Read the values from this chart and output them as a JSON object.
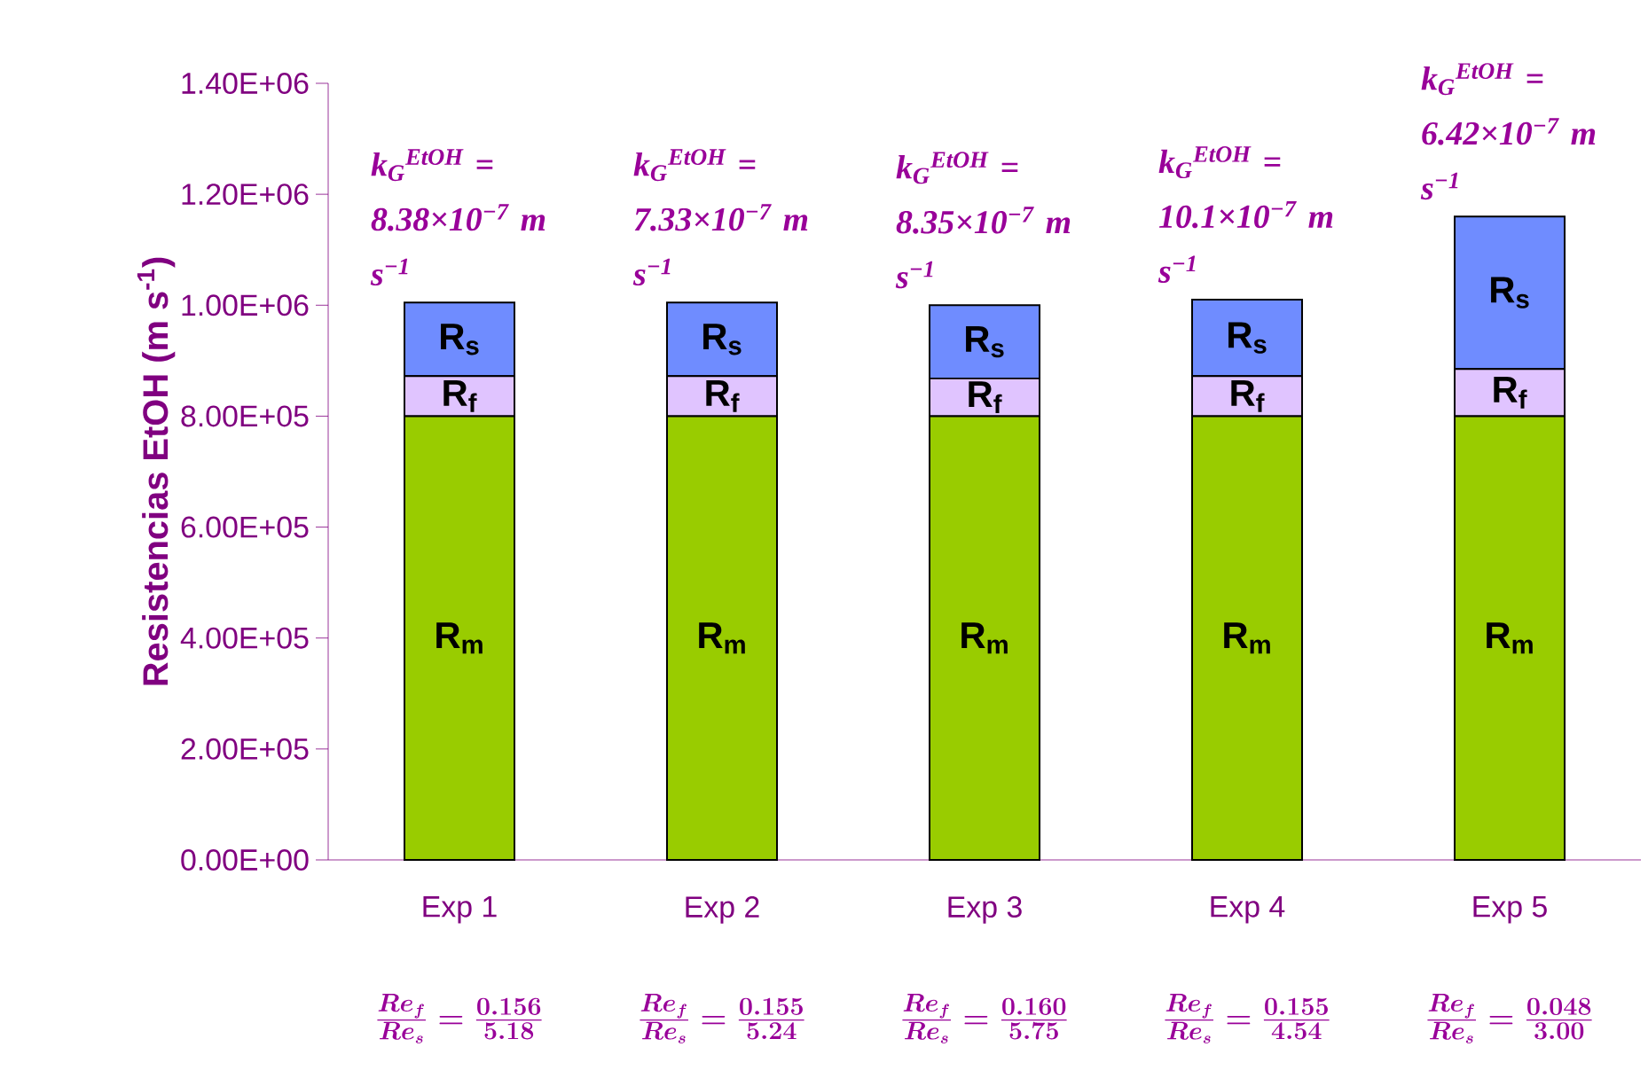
{
  "chart_data": {
    "type": "bar",
    "stacked": true,
    "ylabel": "Resistencias EtOH (m s$^{-1}$)",
    "categories": [
      "Exp 1",
      "Exp 2",
      "Exp 3",
      "Exp 4",
      "Exp 5"
    ],
    "series": [
      {
        "name": "R$_{m}$",
        "color": "#99cc00",
        "values": [
          800000,
          800000,
          800000,
          800000,
          800000
        ]
      },
      {
        "name": "R$_{f}$",
        "color": "#e0c4ff",
        "values": [
          72000,
          72000,
          68000,
          72000,
          85000
        ]
      },
      {
        "name": "R$_{s}$",
        "color": "#6f8cff",
        "values": [
          133000,
          133000,
          132000,
          138000,
          275000
        ]
      }
    ],
    "ylim": [
      0,
      1400000
    ],
    "yticks": [
      {
        "value": 0,
        "label": "0.00E+00"
      },
      {
        "value": 200000,
        "label": "2.00E+05"
      },
      {
        "value": 400000,
        "label": "4.00E+05"
      },
      {
        "value": 600000,
        "label": "6.00E+05"
      },
      {
        "value": 800000,
        "label": "8.00E+05"
      },
      {
        "value": 1000000,
        "label": "1.00E+06"
      },
      {
        "value": 1200000,
        "label": "1.20E+06"
      },
      {
        "value": 1400000,
        "label": "1.40E+06"
      }
    ],
    "annotations": [
      "k$_{G}$$^{EtOH}$ = 8.38×10$^{−7}$ m s$^{−1}$",
      "k$_{G}$$^{EtOH}$ = 7.33×10$^{−7}$ m s$^{−1}$",
      "k$_{G}$$^{EtOH}$ = 8.35×10$^{−7}$ m s$^{−1}$",
      "k$_{G}$$^{EtOH}$ = 10.1×10$^{−7}$ m s$^{−1}$",
      "k$_{G}$$^{EtOH}$ = 6.42×10$^{−7}$ m s$^{−1}$",
      "\\frac{Re_f}{Re_s}=\\frac{0.156}{5.18}",
      "\\frac{Re_f}{Re_s}=\\frac{0.155}{5.24}",
      "\\frac{Re_f}{Re_s}=\\frac{0.160}{5.75}",
      "\\frac{Re_f}{Re_s}=\\frac{0.155}{4.54}",
      "\\frac{Re_f}{Re_s}=\\frac{0.048}{3.00}"
    ]
  }
}
